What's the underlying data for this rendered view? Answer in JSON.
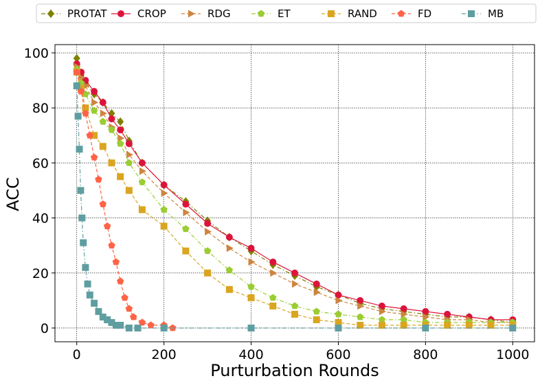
{
  "chart_data": {
    "type": "line",
    "title": "",
    "xlabel": "Purturbation Rounds",
    "ylabel": "ACC",
    "xlim": [
      -50,
      1050
    ],
    "ylim": [
      -5,
      103
    ],
    "xticks": [
      0,
      200,
      400,
      600,
      800,
      1000
    ],
    "yticks": [
      0,
      20,
      40,
      60,
      80,
      100
    ],
    "grid": true,
    "legend_position": "top",
    "series": [
      {
        "name": "PROTAT",
        "color": "#808000",
        "marker": "diamond",
        "line": "dashdot",
        "x": [
          0,
          10,
          20,
          40,
          60,
          80,
          100,
          120,
          150,
          200,
          250,
          300,
          350,
          400,
          450,
          500,
          550,
          600,
          650,
          700,
          750,
          800,
          850,
          900,
          950,
          1000
        ],
        "y": [
          98,
          92,
          89,
          85,
          82,
          78,
          75,
          68,
          60,
          52,
          46,
          39,
          33,
          28,
          23,
          19,
          15,
          12,
          9,
          7,
          6,
          5,
          4,
          4,
          3,
          2
        ]
      },
      {
        "name": "CROP",
        "color": "#DC143C",
        "marker": "circle",
        "line": "solid",
        "x": [
          0,
          10,
          20,
          40,
          60,
          80,
          100,
          120,
          150,
          200,
          250,
          300,
          350,
          400,
          450,
          500,
          550,
          600,
          650,
          700,
          750,
          800,
          850,
          900,
          950,
          1000
        ],
        "y": [
          96,
          93,
          90,
          86,
          82,
          76,
          72,
          67,
          60,
          52,
          45,
          38,
          33,
          29,
          24,
          20,
          16,
          12,
          10,
          8,
          7,
          6,
          5,
          4,
          3,
          3
        ]
      },
      {
        "name": "RDG",
        "color": "#CD853F",
        "marker": "triangle-right",
        "line": "dashed",
        "x": [
          0,
          10,
          20,
          40,
          60,
          80,
          100,
          120,
          150,
          200,
          250,
          300,
          350,
          400,
          450,
          500,
          550,
          600,
          650,
          700,
          750,
          800,
          850,
          900,
          950,
          1000
        ],
        "y": [
          95,
          91,
          88,
          82,
          78,
          73,
          69,
          63,
          57,
          49,
          42,
          35,
          29,
          24,
          20,
          16,
          13,
          10,
          8,
          6,
          5,
          4,
          3,
          3,
          2,
          2
        ]
      },
      {
        "name": "ET",
        "color": "#9ACD32",
        "marker": "pentagon",
        "line": "dashdot",
        "x": [
          0,
          10,
          20,
          40,
          60,
          80,
          100,
          120,
          150,
          200,
          250,
          300,
          350,
          400,
          450,
          500,
          550,
          600,
          650,
          700,
          750,
          800,
          850,
          900,
          950,
          1000
        ],
        "y": [
          94,
          89,
          85,
          79,
          75,
          72,
          67,
          60,
          53,
          43,
          36,
          28,
          21,
          15,
          11,
          8,
          6,
          5,
          4,
          3,
          3,
          2,
          2,
          2,
          2,
          2
        ]
      },
      {
        "name": "RAND",
        "color": "#DAA520",
        "marker": "square",
        "line": "dashed",
        "x": [
          0,
          10,
          20,
          40,
          60,
          80,
          100,
          120,
          150,
          200,
          250,
          300,
          350,
          400,
          450,
          500,
          550,
          600,
          650,
          700,
          750,
          800,
          850,
          900,
          950,
          1000
        ],
        "y": [
          93,
          87,
          80,
          70,
          66,
          60,
          55,
          50,
          43,
          37,
          28,
          20,
          14,
          11,
          8,
          5,
          3,
          2,
          1,
          1,
          1,
          1,
          1,
          1,
          1,
          1
        ]
      },
      {
        "name": "FD",
        "color": "#FF6347",
        "marker": "pentagon",
        "line": "dashed",
        "x": [
          0,
          10,
          20,
          30,
          40,
          50,
          60,
          70,
          80,
          90,
          100,
          110,
          120,
          130,
          150,
          170,
          200,
          220
        ],
        "y": [
          93,
          86,
          78,
          70,
          62,
          54,
          45,
          37,
          30,
          24,
          17,
          11,
          7,
          4,
          2,
          1,
          1,
          0
        ]
      },
      {
        "name": "MB",
        "color": "#5F9EA0",
        "marker": "square",
        "line": "dashdot",
        "x": [
          0,
          3,
          6,
          9,
          12,
          15,
          20,
          25,
          30,
          40,
          50,
          60,
          70,
          80,
          90,
          100,
          120,
          140,
          200,
          400,
          600,
          800,
          1000
        ],
        "y": [
          88,
          77,
          65,
          50,
          40,
          31,
          22,
          16,
          12,
          9,
          6,
          4,
          3,
          2,
          1,
          1,
          0,
          0,
          0,
          0,
          0,
          0,
          0
        ]
      }
    ]
  }
}
